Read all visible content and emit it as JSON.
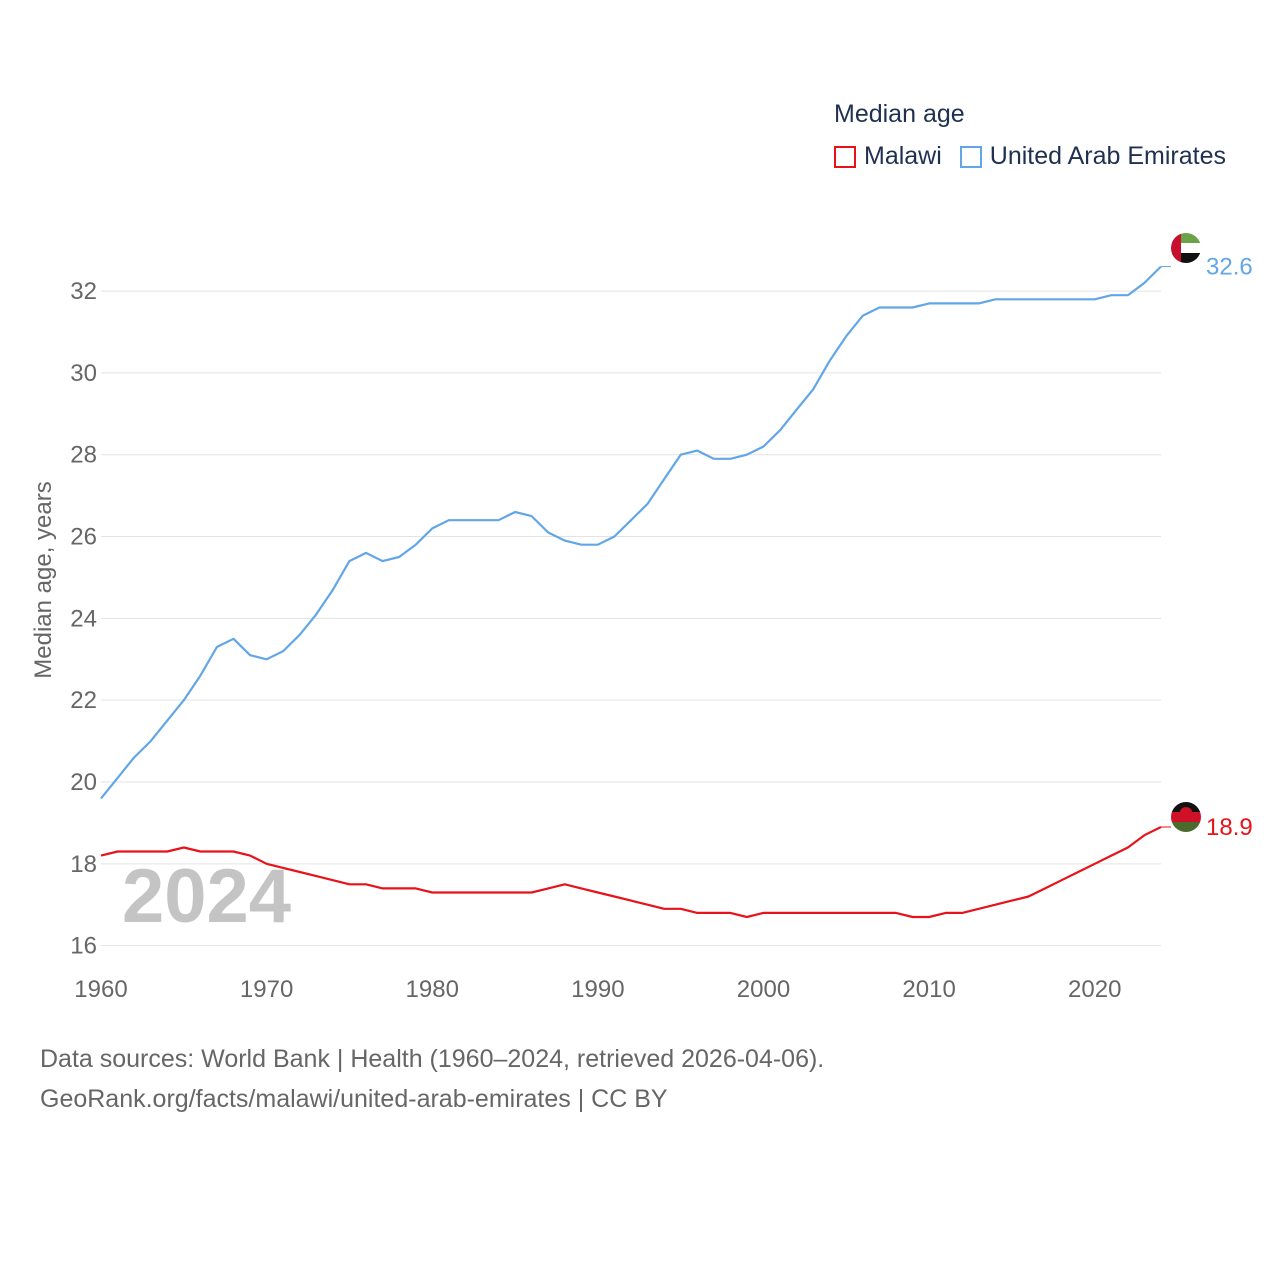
{
  "legend": {
    "title": "Median age",
    "items": [
      {
        "label": "Malawi",
        "color": "#e8121a"
      },
      {
        "label": "United Arab Emirates",
        "color": "#62a6e8"
      }
    ]
  },
  "source": {
    "line1": "Data sources: World Bank | Health (1960–2024, retrieved 2026-04-06).",
    "line2": "GeoRank.org/facts/malawi/united-arab-emirates | CC BY"
  },
  "chart_data": {
    "type": "line",
    "title": "Median age",
    "xlabel": "",
    "ylabel": "Median age, years",
    "year_label": "2024",
    "xlim": [
      1960,
      2024
    ],
    "ylim": [
      15.6,
      33.2
    ],
    "x_ticks": [
      1960,
      1970,
      1980,
      1990,
      2000,
      2010,
      2020
    ],
    "y_ticks": [
      16,
      18,
      20,
      22,
      24,
      26,
      28,
      30,
      32
    ],
    "grid": true,
    "legend_position": "top-right",
    "x": [
      1960,
      1961,
      1962,
      1963,
      1964,
      1965,
      1966,
      1967,
      1968,
      1969,
      1970,
      1971,
      1972,
      1973,
      1974,
      1975,
      1976,
      1977,
      1978,
      1979,
      1980,
      1981,
      1982,
      1983,
      1984,
      1985,
      1986,
      1987,
      1988,
      1989,
      1990,
      1991,
      1992,
      1993,
      1994,
      1995,
      1996,
      1997,
      1998,
      1999,
      2000,
      2001,
      2002,
      2003,
      2004,
      2005,
      2006,
      2007,
      2008,
      2009,
      2010,
      2011,
      2012,
      2013,
      2014,
      2015,
      2016,
      2017,
      2018,
      2019,
      2020,
      2021,
      2022,
      2023,
      2024
    ],
    "series": [
      {
        "name": "Malawi",
        "color": "#e8121a",
        "end_label": "18.9",
        "values": [
          18.2,
          18.3,
          18.3,
          18.3,
          18.3,
          18.4,
          18.3,
          18.3,
          18.3,
          18.2,
          18.0,
          17.9,
          17.8,
          17.7,
          17.6,
          17.5,
          17.5,
          17.4,
          17.4,
          17.4,
          17.3,
          17.3,
          17.3,
          17.3,
          17.3,
          17.3,
          17.3,
          17.4,
          17.5,
          17.4,
          17.3,
          17.2,
          17.1,
          17.0,
          16.9,
          16.9,
          16.8,
          16.8,
          16.8,
          16.7,
          16.8,
          16.8,
          16.8,
          16.8,
          16.8,
          16.8,
          16.8,
          16.8,
          16.8,
          16.7,
          16.7,
          16.8,
          16.8,
          16.9,
          17.0,
          17.1,
          17.2,
          17.4,
          17.6,
          17.8,
          18.0,
          18.2,
          18.4,
          18.7,
          18.9
        ]
      },
      {
        "name": "United Arab Emirates",
        "color": "#62a6e8",
        "end_label": "32.6",
        "values": [
          19.6,
          20.1,
          20.6,
          21.0,
          21.5,
          22.0,
          22.6,
          23.3,
          23.5,
          23.1,
          23.0,
          23.2,
          23.6,
          24.1,
          24.7,
          25.4,
          25.6,
          25.4,
          25.5,
          25.8,
          26.2,
          26.4,
          26.4,
          26.4,
          26.4,
          26.6,
          26.5,
          26.1,
          25.9,
          25.8,
          25.8,
          26.0,
          26.4,
          26.8,
          27.4,
          28.0,
          28.1,
          27.9,
          27.9,
          28.0,
          28.2,
          28.6,
          29.1,
          29.6,
          30.3,
          30.9,
          31.4,
          31.6,
          31.6,
          31.6,
          31.7,
          31.7,
          31.7,
          31.7,
          31.8,
          31.8,
          31.8,
          31.8,
          31.8,
          31.8,
          31.8,
          31.9,
          31.9,
          32.2,
          32.6
        ]
      }
    ]
  }
}
